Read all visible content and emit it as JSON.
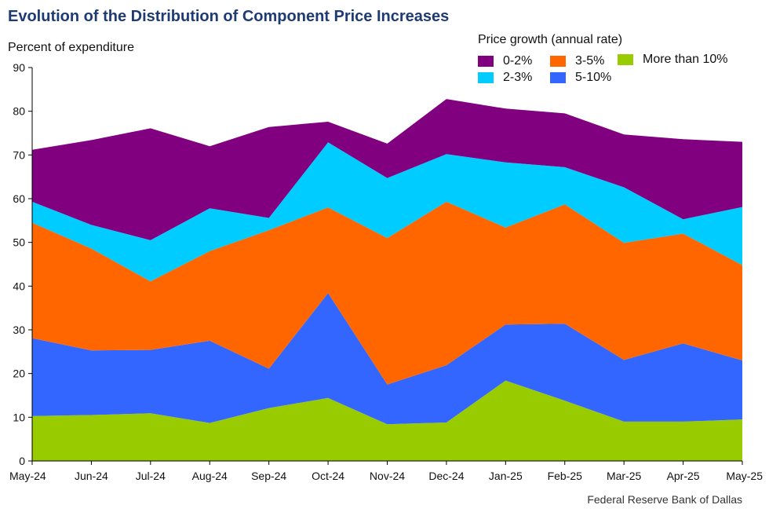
{
  "title": "Evolution of the Distribution of Component Price Increases",
  "footer": "Federal Reserve Bank of Dallas",
  "chart_data": {
    "type": "area",
    "stacked": true,
    "title": "Evolution of the Distribution of Component Price Increases",
    "ylabel": "Percent of expenditure",
    "xlabel": "",
    "ylim": [
      0,
      90
    ],
    "yticks": [
      0,
      10,
      20,
      30,
      40,
      50,
      60,
      70,
      80,
      90
    ],
    "grid": false,
    "legend_title": "Price growth (annual rate)",
    "legend_position": "top-right",
    "categories": [
      "May-24",
      "Jun-24",
      "Jul-24",
      "Aug-24",
      "Sep-24",
      "Oct-24",
      "Nov-24",
      "Dec-24",
      "Jan-25",
      "Feb-25",
      "Mar-25",
      "Apr-25",
      "May-25"
    ],
    "series": [
      {
        "name": "More than 10%",
        "color": "#99cc00",
        "values": [
          10.3,
          10.5,
          10.9,
          8.7,
          12.1,
          14.4,
          8.4,
          8.8,
          18.4,
          13.8,
          9.0,
          9.0,
          9.5
        ]
      },
      {
        "name": "5-10%",
        "color": "#3366ff",
        "values": [
          17.8,
          14.8,
          14.5,
          18.8,
          9.0,
          24.0,
          9.1,
          13.1,
          12.8,
          17.6,
          14.1,
          17.9,
          13.5
        ]
      },
      {
        "name": "3-5%",
        "color": "#ff6600",
        "values": [
          26.4,
          23.3,
          15.7,
          20.5,
          31.7,
          19.6,
          33.5,
          37.4,
          22.2,
          27.3,
          26.8,
          25.1,
          21.8
        ]
      },
      {
        "name": "2-3%",
        "color": "#00ccff",
        "values": [
          4.8,
          5.4,
          9.4,
          9.8,
          2.8,
          14.9,
          13.7,
          10.9,
          14.9,
          8.5,
          12.7,
          3.3,
          13.3
        ]
      },
      {
        "name": "0-2%",
        "color": "#800080",
        "values": [
          11.9,
          19.4,
          25.6,
          14.2,
          20.8,
          4.7,
          7.9,
          12.6,
          12.3,
          12.3,
          12.1,
          18.3,
          14.9
        ]
      }
    ],
    "legend_order": [
      "0-2%",
      "2-3%",
      "3-5%",
      "5-10%",
      "More than 10%"
    ]
  }
}
